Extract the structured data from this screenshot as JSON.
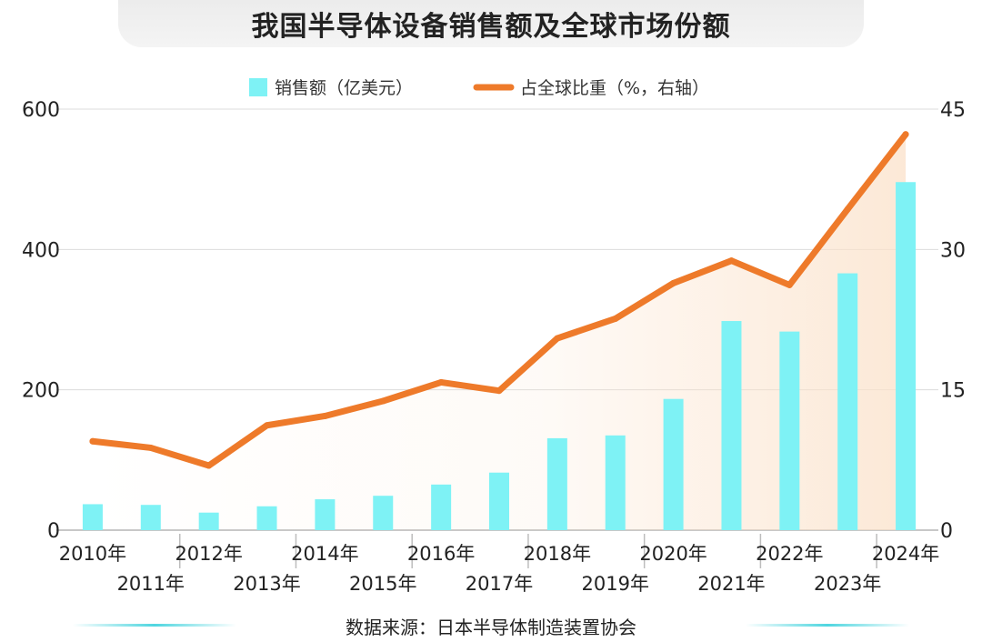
{
  "title": "我国半导体设备销售额及全球市场份额",
  "source": "数据来源：日本半导体制造装置协会",
  "colors": {
    "bar": "#7ef2f5",
    "line": "#ee7a2a",
    "area_tint": "#fbe1c9",
    "grid": "#dcdcdc"
  },
  "chart_data": {
    "type": "bar+line",
    "categories": [
      "2010年",
      "2011年",
      "2012年",
      "2013年",
      "2014年",
      "2015年",
      "2016年",
      "2017年",
      "2018年",
      "2019年",
      "2020年",
      "2021年",
      "2022年",
      "2023年",
      "2024年"
    ],
    "series": [
      {
        "name": "销售额（亿美元）",
        "type": "bar",
        "axis": "left",
        "values": [
          37,
          36,
          25,
          34,
          44,
          49,
          65,
          82,
          131,
          135,
          187,
          298,
          283,
          366,
          496
        ]
      },
      {
        "name": "占全球比重（%，右轴）",
        "type": "line",
        "axis": "right",
        "values": [
          9.5,
          8.8,
          6.9,
          11.2,
          12.2,
          13.8,
          15.8,
          14.9,
          20.5,
          22.6,
          26.4,
          28.8,
          26.2,
          34.3,
          42.3
        ]
      }
    ],
    "y_left": {
      "ylim": [
        0,
        600
      ],
      "ticks": [
        "0",
        "200",
        "400",
        "600"
      ]
    },
    "y_right": {
      "ylim": [
        0,
        45
      ],
      "ticks": [
        "0",
        "15",
        "30",
        "45"
      ]
    },
    "grid": true,
    "legend_position": "top-center"
  }
}
